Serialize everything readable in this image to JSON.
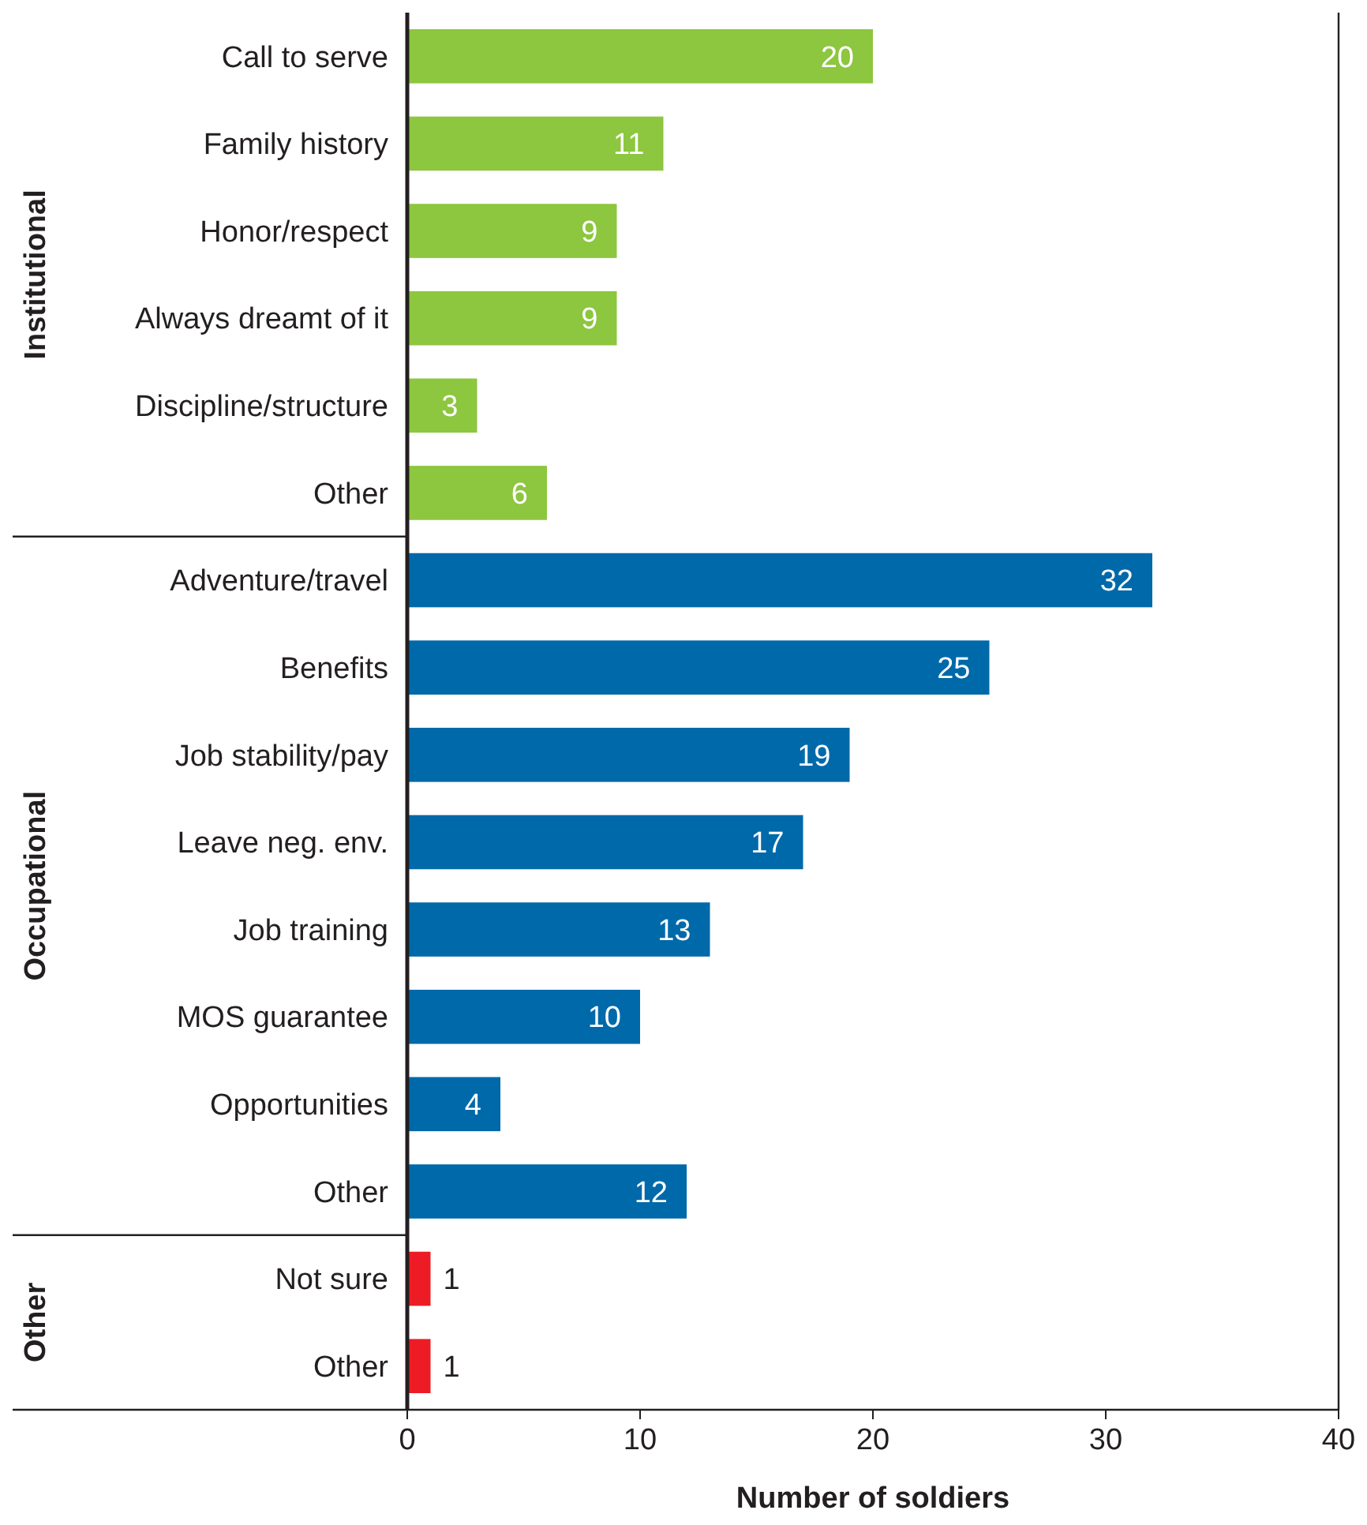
{
  "chart_data": {
    "type": "bar",
    "orientation": "horizontal",
    "xlabel": "Number of soldiers",
    "xlim": [
      0,
      40
    ],
    "xticks": [
      0,
      10,
      20,
      30,
      40
    ],
    "data_labels": true,
    "grid": false,
    "annotations": [
      "Institutional",
      "Occupational",
      "Other"
    ],
    "categories": [
      "Call to serve",
      "Family history",
      "Honor/respect",
      "Always dreamt of it",
      "Discipline/structure",
      "Other",
      "Adventure/travel",
      "Benefits",
      "Job stability/pay",
      "Leave neg. env.",
      "Job training",
      "MOS guarantee",
      "Opportunities",
      "Other",
      "Not sure",
      "Other"
    ],
    "series": [
      {
        "color": "#8dc63f",
        "values": [
          20,
          11,
          9,
          9,
          3,
          6,
          null,
          null,
          null,
          null,
          null,
          null,
          null,
          null,
          null,
          null
        ]
      },
      {
        "color": "#0069aa",
        "values": [
          null,
          null,
          null,
          null,
          null,
          null,
          32,
          25,
          19,
          17,
          13,
          10,
          4,
          12,
          null,
          null
        ]
      },
      {
        "color": "#ed1c24",
        "values": [
          null,
          null,
          null,
          null,
          null,
          null,
          null,
          null,
          null,
          null,
          null,
          null,
          null,
          null,
          1,
          1
        ]
      }
    ]
  }
}
